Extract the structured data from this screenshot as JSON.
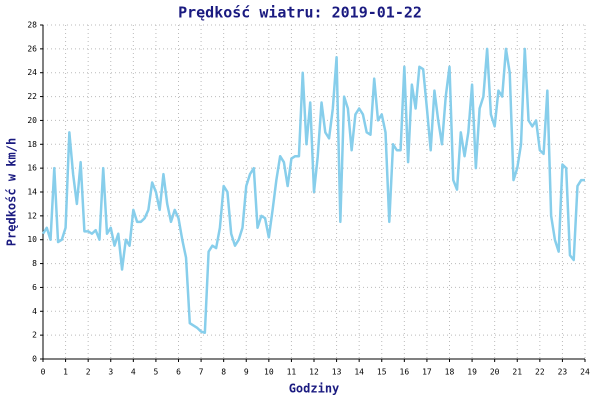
{
  "chart_data": {
    "type": "line",
    "title": "Prędkość wiatru: 2019-01-22",
    "x_label": "Godziny",
    "y_label": "Prędkość w km/h",
    "color": "#87ceeb",
    "grid": true,
    "xlim": [
      0,
      24
    ],
    "xticks": [
      0,
      1,
      2,
      3,
      4,
      5,
      6,
      7,
      8,
      9,
      10,
      11,
      12,
      13,
      14,
      15,
      16,
      17,
      18,
      19,
      20,
      21,
      22,
      23,
      24
    ],
    "ylim": [
      0,
      28
    ],
    "yticks": [
      0,
      2,
      4,
      6,
      8,
      10,
      12,
      14,
      16,
      18,
      20,
      22,
      24,
      26,
      28
    ],
    "x": [
      0,
      0.1667,
      0.3333,
      0.5,
      0.6667,
      0.8333,
      1,
      1.1667,
      1.3333,
      1.5,
      1.6667,
      1.8333,
      2,
      2.1667,
      2.3333,
      2.5,
      2.6667,
      2.8333,
      3,
      3.1667,
      3.3333,
      3.5,
      3.6667,
      3.8333,
      4,
      4.1667,
      4.3333,
      4.5,
      4.6667,
      4.8333,
      5,
      5.1667,
      5.3333,
      5.5,
      5.6667,
      5.8333,
      6,
      6.1667,
      6.3333,
      6.5,
      6.6667,
      6.8333,
      7,
      7.1667,
      7.3333,
      7.5,
      7.6667,
      7.8333,
      8,
      8.1667,
      8.3333,
      8.5,
      8.6667,
      8.8333,
      9,
      9.1667,
      9.3333,
      9.5,
      9.6667,
      9.8333,
      10,
      10.1667,
      10.3333,
      10.5,
      10.6667,
      10.8333,
      11,
      11.1667,
      11.3333,
      11.5,
      11.6667,
      11.8333,
      12,
      12.1667,
      12.3333,
      12.5,
      12.6667,
      12.8333,
      13,
      13.1667,
      13.3333,
      13.5,
      13.6667,
      13.8333,
      14,
      14.1667,
      14.3333,
      14.5,
      14.6667,
      14.8333,
      15,
      15.1667,
      15.3333,
      15.5,
      15.6667,
      15.8333,
      16,
      16.1667,
      16.3333,
      16.5,
      16.6667,
      16.8333,
      17,
      17.1667,
      17.3333,
      17.5,
      17.6667,
      17.8333,
      18,
      18.1667,
      18.3333,
      18.5,
      18.6667,
      18.8333,
      19,
      19.1667,
      19.3333,
      19.5,
      19.6667,
      19.8333,
      20,
      20.1667,
      20.3333,
      20.5,
      20.6667,
      20.8333,
      21,
      21.1667,
      21.3333,
      21.5,
      21.6667,
      21.8333,
      22,
      22.1667,
      22.3333,
      22.5,
      22.6667,
      22.8333,
      23,
      23.1667,
      23.3333,
      23.5,
      23.6667,
      23.8333,
      24
    ],
    "values": [
      10.5,
      11,
      10,
      16,
      9.8,
      10,
      11,
      19,
      15.5,
      13,
      16.5,
      10.7,
      10.7,
      10.5,
      10.8,
      10,
      16,
      10.5,
      11,
      9.5,
      10.5,
      7.5,
      10,
      9.5,
      12.5,
      11.5,
      11.5,
      11.8,
      12.5,
      14.8,
      14,
      12.5,
      15.5,
      13,
      11.5,
      12.5,
      11.8,
      10,
      8.5,
      3,
      2.8,
      2.6,
      2.3,
      2.2,
      9,
      9.5,
      9.3,
      11,
      14.5,
      14,
      10.5,
      9.5,
      10,
      11,
      14.5,
      15.5,
      16,
      11,
      12,
      11.8,
      10.2,
      12.5,
      15,
      17,
      16.5,
      14.5,
      16.8,
      17,
      17,
      24,
      18,
      21.5,
      14,
      17,
      21.5,
      19,
      18.5,
      21,
      25.3,
      11.5,
      22,
      21,
      17.5,
      20.5,
      21,
      20.5,
      19,
      18.8,
      23.5,
      20,
      20.5,
      19,
      11.5,
      18,
      17.5,
      17.5,
      24.5,
      16.5,
      23,
      21,
      24.5,
      24.3,
      21,
      17.5,
      22.5,
      20,
      18,
      22,
      24.5,
      15,
      14.2,
      19,
      17,
      19,
      23,
      16,
      21,
      22,
      26,
      20.5,
      19.5,
      22.5,
      22,
      26,
      24,
      15,
      16,
      18,
      26,
      20,
      19.5,
      20,
      17.5,
      17.2,
      22.5,
      12,
      10,
      9,
      16.3,
      16,
      8.7,
      8.3,
      14.5,
      15,
      15
    ]
  }
}
